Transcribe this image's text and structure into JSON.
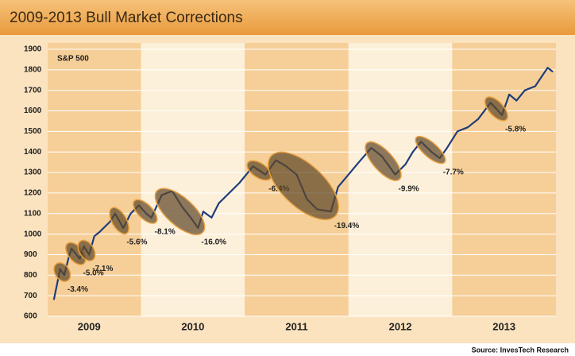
{
  "chart_data": {
    "type": "line",
    "title": "2009-2013 Bull Market Corrections",
    "series_label": "S&P 500",
    "source": "Source: InvesTech Research",
    "color": "#1f3d7a",
    "x": [
      2009.16,
      2009.2,
      2009.22,
      2009.26,
      2009.3,
      2009.33,
      2009.41,
      2009.45,
      2009.5,
      2009.55,
      2009.6,
      2009.7,
      2009.75,
      2009.83,
      2009.9,
      2009.98,
      2010.05,
      2010.1,
      2010.2,
      2010.3,
      2010.4,
      2010.48,
      2010.55,
      2010.6,
      2010.68,
      2010.75,
      2010.85,
      2010.95,
      2011.08,
      2011.2,
      2011.3,
      2011.4,
      2011.5,
      2011.6,
      2011.7,
      2011.83,
      2011.9,
      2012.0,
      2012.1,
      2012.22,
      2012.32,
      2012.45,
      2012.55,
      2012.62,
      2012.7,
      2012.8,
      2012.88,
      2012.95,
      2013.05,
      2013.15,
      2013.25,
      2013.37,
      2013.48,
      2013.55,
      2013.62,
      2013.7,
      2013.8,
      2013.88,
      2013.92,
      2013.97
    ],
    "values": [
      680,
      780,
      830,
      800,
      880,
      930,
      880,
      940,
      900,
      990,
      1010,
      1060,
      1100,
      1030,
      1100,
      1140,
      1100,
      1080,
      1190,
      1210,
      1130,
      1080,
      1030,
      1110,
      1080,
      1150,
      1200,
      1250,
      1330,
      1290,
      1360,
      1330,
      1290,
      1170,
      1120,
      1110,
      1230,
      1290,
      1350,
      1420,
      1380,
      1290,
      1340,
      1400,
      1450,
      1400,
      1370,
      1420,
      1500,
      1520,
      1560,
      1640,
      1580,
      1680,
      1650,
      1700,
      1720,
      1780,
      1810,
      1790
    ],
    "xlim": [
      2009.1,
      2014.0
    ],
    "xticks": [
      {
        "value": 2009.5,
        "label": "2009"
      },
      {
        "value": 2010.5,
        "label": "2010"
      },
      {
        "value": 2011.5,
        "label": "2011"
      },
      {
        "value": 2012.5,
        "label": "2012"
      },
      {
        "value": 2013.5,
        "label": "2013"
      }
    ],
    "ylim": [
      600,
      1900
    ],
    "yticks": [
      600,
      700,
      800,
      900,
      1000,
      1100,
      1200,
      1300,
      1400,
      1500,
      1600,
      1700,
      1800,
      1900
    ],
    "grid": true,
    "corrections": {
      "values": [
        -3.4,
        -5.0,
        -7.1,
        -5.6,
        -8.1,
        -16.0,
        -6.4,
        -19.4,
        -9.9,
        -7.7,
        -5.8
      ],
      "value_labels": [
        "-3.4%",
        "-5.0%",
        "-7.1%",
        "-5.6%",
        "-8.1%",
        "-16.0%",
        "-6.4%",
        "-19.4%",
        "-9.9%",
        "-7.7%",
        "-5.8%"
      ],
      "start": [
        2009.22,
        2009.33,
        2009.45,
        2009.75,
        2009.98,
        2010.2,
        2011.08,
        2011.3,
        2012.22,
        2012.7,
        2013.37
      ],
      "end": [
        2009.26,
        2009.41,
        2009.5,
        2009.83,
        2010.1,
        2010.55,
        2011.2,
        2011.83,
        2012.45,
        2012.88,
        2013.48
      ]
    }
  }
}
